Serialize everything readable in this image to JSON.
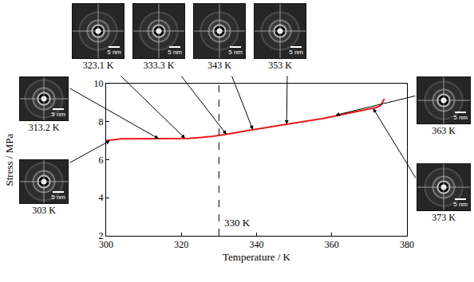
{
  "chart_data": {
    "type": "line",
    "x_label": "Temperature / K",
    "y_label": "Stress / MPa",
    "x": [
      300,
      302,
      304,
      306,
      308,
      310,
      312,
      314,
      316,
      318,
      320,
      322,
      324,
      326,
      328,
      330,
      332,
      334,
      336,
      338,
      340,
      342,
      344,
      346,
      348,
      350,
      352,
      354,
      356,
      358,
      360,
      362,
      364,
      366,
      368,
      370,
      372,
      373,
      374
    ],
    "values": [
      7.0,
      7.05,
      7.1,
      7.1,
      7.1,
      7.1,
      7.1,
      7.1,
      7.1,
      7.1,
      7.12,
      7.12,
      7.15,
      7.18,
      7.22,
      7.28,
      7.33,
      7.4,
      7.48,
      7.55,
      7.62,
      7.68,
      7.74,
      7.8,
      7.86,
      7.92,
      7.98,
      8.04,
      8.1,
      8.18,
      8.26,
      8.34,
      8.42,
      8.5,
      8.58,
      8.66,
      8.75,
      8.85,
      9.2
    ],
    "color": "#e8191a",
    "xlim": [
      300,
      380
    ],
    "xticks": [
      300,
      320,
      340,
      360,
      380
    ],
    "ylim": [
      2,
      10
    ],
    "yticks": [
      2,
      4,
      6,
      8,
      10
    ],
    "grid": false,
    "vline": {
      "x": 330,
      "line_style": "dashed"
    },
    "annotations": [
      {
        "text": "330 K",
        "x": 330,
        "y": 2.7
      }
    ],
    "insets": [
      {
        "label": "303 K",
        "scale_label": "5 nm",
        "x": 301,
        "y": 7.0
      },
      {
        "label": "313.2 K",
        "scale_label": "5 nm",
        "x": 314,
        "y": 7.1
      },
      {
        "label": "323.1 K",
        "scale_label": "5 nm",
        "x": 321,
        "y": 7.12
      },
      {
        "label": "333.3 K",
        "scale_label": "5 nm",
        "x": 332,
        "y": 7.33
      },
      {
        "label": "343 K",
        "scale_label": "5 nm",
        "x": 339,
        "y": 7.58
      },
      {
        "label": "353 K",
        "scale_label": "5 nm",
        "x": 348,
        "y": 7.86
      },
      {
        "label": "363 K",
        "scale_label": "5 nm",
        "x": 361,
        "y": 8.34
      },
      {
        "label": "373 K",
        "scale_label": "5 nm",
        "x": 371,
        "y": 8.7
      }
    ]
  }
}
